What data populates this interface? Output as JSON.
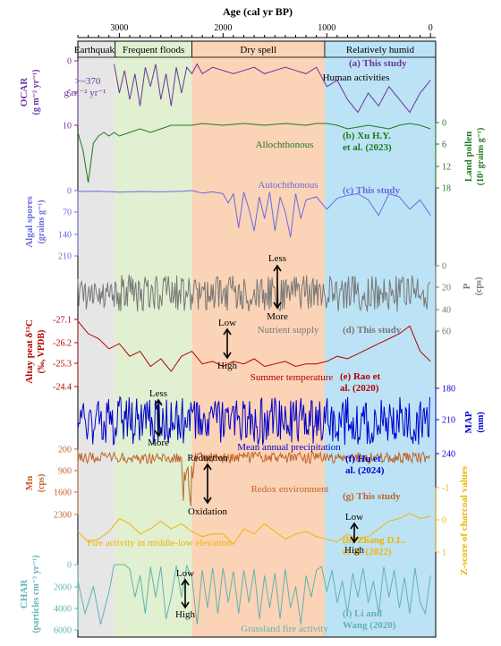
{
  "chart_data": {
    "type": "line",
    "x_axis": {
      "label": "Age (cal yr BP)",
      "range": [
        3400,
        -50
      ],
      "ticks": [
        3000,
        2000,
        1000,
        0
      ]
    },
    "phases": [
      {
        "name": "Earthquake",
        "from": 3400,
        "to": 3040,
        "color": "#e6e6e6"
      },
      {
        "name": "Frequent floods",
        "from": 3040,
        "to": 2300,
        "color": "#e0f0d0"
      },
      {
        "name": "Dry spell",
        "from": 2300,
        "to": 1020,
        "color": "#fbd3b6"
      },
      {
        "name": "Relatively humid",
        "from": 1020,
        "to": -50,
        "color": "#bce3f5"
      }
    ],
    "panels": [
      {
        "id": "a",
        "ylabel": "OCAR",
        "yunit": "(g m⁻² yr⁻¹)",
        "side": "left",
        "color": "#7030a0",
        "ticks": [
          0,
          5,
          10
        ],
        "label": "(a) This study",
        "annotations": [
          "Human activities",
          ">~370",
          "g m⁻² yr⁻¹"
        ],
        "x": [
          3300,
          3200,
          3050,
          3000,
          2950,
          2900,
          2850,
          2800,
          2750,
          2700,
          2650,
          2600,
          2550,
          2500,
          2450,
          2400,
          2350,
          2300,
          2250,
          2200,
          2100,
          2000,
          1900,
          1800,
          1700,
          1600,
          1500,
          1400,
          1300,
          1200,
          1100,
          1000,
          900,
          800,
          700,
          600,
          500,
          400,
          300,
          200,
          100,
          0
        ],
        "y": [
          null,
          null,
          0.5,
          5,
          1.5,
          6,
          2,
          7,
          1,
          4,
          0.5,
          6,
          2,
          7,
          1,
          5,
          1,
          2,
          0.5,
          2,
          1,
          1.5,
          2,
          1.5,
          1,
          2,
          1.5,
          1,
          1.5,
          2,
          1,
          4,
          3,
          6,
          8,
          5,
          7,
          4,
          6,
          8,
          5,
          3
        ]
      },
      {
        "id": "b",
        "ylabel": "Land pollen",
        "yunit": "(10³ grains g⁻¹)",
        "side": "right",
        "color": "#1f7a1f",
        "ticks": [
          0,
          6,
          12,
          18
        ],
        "label": "(b) Xu H.Y. et al. (2023)",
        "annotations": [
          "Allochthonous"
        ],
        "x": [
          3400,
          3350,
          3300,
          3250,
          3200,
          3150,
          3100,
          3050,
          3000,
          2900,
          2800,
          2700,
          2600,
          2500,
          2400,
          2300,
          2200,
          2000,
          1800,
          1600,
          1400,
          1200,
          1100,
          1000,
          900,
          800,
          600,
          400,
          300,
          200,
          100,
          0
        ],
        "y": [
          3,
          8,
          17,
          6,
          4,
          3,
          4,
          3,
          4,
          3,
          2,
          3,
          2,
          1,
          1,
          1,
          0.5,
          1,
          0.5,
          1,
          0.5,
          1,
          0.5,
          0.5,
          1,
          2,
          1,
          2,
          1,
          0.5,
          1,
          2
        ]
      },
      {
        "id": "c",
        "ylabel": "Algal spores",
        "yunit": "(grains g⁻¹)",
        "side": "left",
        "color": "#6a6adf",
        "ticks": [
          0,
          70,
          140,
          210
        ],
        "label": "(c) This study",
        "annotations": [
          "Autochthonous"
        ],
        "x": [
          3400,
          3200,
          3000,
          2800,
          2600,
          2400,
          2300,
          2200,
          2100,
          2000,
          1950,
          1900,
          1850,
          1800,
          1750,
          1700,
          1650,
          1600,
          1550,
          1500,
          1450,
          1400,
          1350,
          1300,
          1250,
          1200,
          1100,
          1000,
          900,
          800,
          700,
          600,
          500,
          400,
          300,
          200,
          100,
          0
        ],
        "y": [
          3,
          2,
          5,
          3,
          4,
          2,
          0,
          8,
          4,
          10,
          40,
          10,
          120,
          5,
          60,
          130,
          20,
          90,
          5,
          130,
          20,
          70,
          150,
          10,
          90,
          30,
          20,
          60,
          25,
          15,
          10,
          30,
          80,
          10,
          20,
          60,
          30,
          80
        ]
      },
      {
        "id": "d",
        "ylabel": "P",
        "yunit": "(cps)",
        "side": "right",
        "color": "#777777",
        "ticks": [
          0,
          20,
          40,
          60
        ],
        "label": "(d) This study",
        "annotations": [
          "Nutrient supply",
          "Less",
          "More"
        ],
        "y_description": "high-frequency noisy series between ~5 and ~45 cps"
      },
      {
        "id": "e",
        "ylabel": "Altay peat δ¹³C",
        "yunit": "(‰, VPDB)",
        "side": "left",
        "color": "#b30000",
        "ticks": [
          -27.1,
          -26.2,
          -25.3,
          -24.4
        ],
        "label": "(e) Rao et al. (2020)",
        "annotations": [
          "Summer temperature",
          "Low",
          "High"
        ],
        "x": [
          3400,
          3300,
          3200,
          3100,
          3000,
          2900,
          2800,
          2700,
          2600,
          2500,
          2400,
          2300,
          2200,
          2100,
          2000,
          1900,
          1800,
          1700,
          1600,
          1500,
          1400,
          1300,
          1200,
          1100,
          1000,
          900,
          800,
          700,
          600,
          500,
          400,
          300,
          200,
          150,
          100,
          0
        ],
        "y": [
          -27.0,
          -26.5,
          -26.3,
          -25.9,
          -26.1,
          -25.6,
          -25.8,
          -25.2,
          -25.5,
          -25.0,
          -25.6,
          -25.8,
          -25.3,
          -25.4,
          -25.2,
          -25.4,
          -25.3,
          -25.5,
          -25.2,
          -25.3,
          -25.4,
          -25.2,
          -25.3,
          -25.3,
          -25.4,
          -25.6,
          -25.5,
          -25.7,
          -25.9,
          -26.1,
          -26.3,
          -26.5,
          -26.8,
          -26.3,
          -25.8,
          -25.4
        ]
      },
      {
        "id": "f",
        "ylabel": "MAP",
        "yunit": "(mm)",
        "side": "right",
        "color": "#0000cc",
        "ticks": [
          180,
          210,
          240
        ],
        "label": "(f) Hu et al. (2024)",
        "annotations": [
          "Mean annual precipitation",
          "Less",
          "More"
        ],
        "y_description": "high-frequency series oscillating between ~185 and ~235 mm"
      },
      {
        "id": "g",
        "ylabel": "Mn",
        "yunit": "(cps)",
        "side": "left",
        "color": "#c0642a",
        "ticks": [
          200,
          900,
          1600,
          2300
        ],
        "label": "(g) This study",
        "annotations": [
          "Redox environment",
          "Reduction",
          "Oxidation"
        ],
        "y_description": "noisy series near 300-600 cps with a drop to ~2200 cps around 2350-2300 cal yr BP"
      },
      {
        "id": "h",
        "ylabel": "Z-score of charcoal values",
        "side": "right",
        "color": "#f0b400",
        "ticks": [
          -1.0,
          0,
          1.0
        ],
        "label": "(h) Zhang D.L. et al. (2022)",
        "annotations": [
          "Fire activity in middle-low elevation",
          "Low",
          "High"
        ],
        "x": [
          3400,
          3300,
          3200,
          3100,
          3000,
          2900,
          2800,
          2700,
          2600,
          2500,
          2400,
          2300,
          2200,
          2100,
          2000,
          1900,
          1800,
          1700,
          1600,
          1500,
          1400,
          1300,
          1200,
          1100,
          1000,
          900,
          800,
          700,
          600,
          500,
          400,
          300,
          200,
          100,
          0
        ],
        "y": [
          0.2,
          0.6,
          0.5,
          0.2,
          -0.3,
          -0.1,
          0.3,
          0.1,
          -0.2,
          0.1,
          -0.1,
          0.2,
          0.4,
          0.3,
          0.3,
          0.7,
          0.1,
          0.3,
          -0.1,
          0.2,
          0.5,
          0.3,
          0.2,
          0.4,
          0.5,
          0.6,
          0.3,
          0.5,
          0.4,
          0.1,
          -0.2,
          -0.3,
          -0.5,
          -0.3,
          -0.4
        ]
      },
      {
        "id": "i",
        "ylabel": "CHAR",
        "yunit": "(particles cm⁻² yr⁻¹)",
        "side": "left",
        "color": "#5fb3b3",
        "ticks": [
          0,
          2000,
          4000,
          6000
        ],
        "label": "(i) Li and Wang (2020)",
        "annotations": [
          "Grassland fire activity",
          "Low",
          "High"
        ],
        "x": [
          3400,
          3330,
          3250,
          3180,
          3100,
          3050,
          3000,
          2950,
          2900,
          2850,
          2800,
          2750,
          2700,
          2650,
          2600,
          2550,
          2500,
          2450,
          2400,
          2350,
          2300,
          2250,
          2200,
          2150,
          2100,
          2050,
          2000,
          1950,
          1900,
          1850,
          1800,
          1750,
          1700,
          1650,
          1600,
          1550,
          1500,
          1450,
          1400,
          1350,
          1300,
          1250,
          1200,
          1150,
          1100,
          1050,
          1000,
          950,
          900,
          850,
          800,
          750,
          700,
          650,
          600,
          550,
          500,
          450,
          400,
          350,
          300,
          250,
          200,
          150,
          100,
          50,
          0
        ],
        "y": [
          1500,
          4500,
          2000,
          5500,
          2500,
          0,
          0,
          0,
          400,
          3000,
          1000,
          4500,
          200,
          3000,
          200,
          5000,
          3000,
          100,
          3000,
          100,
          1200,
          5500,
          500,
          4000,
          300,
          4500,
          300,
          3500,
          600,
          4500,
          500,
          3500,
          400,
          5000,
          1000,
          4000,
          800,
          5000,
          400,
          4000,
          2000,
          5500,
          1000,
          3000,
          500,
          200,
          2500,
          500,
          3500,
          1500,
          4500,
          800,
          3000,
          300,
          3500,
          1500,
          4500,
          200,
          3000,
          500,
          4000,
          1200,
          4500,
          300,
          3500,
          4500,
          1000
        ]
      }
    ]
  }
}
